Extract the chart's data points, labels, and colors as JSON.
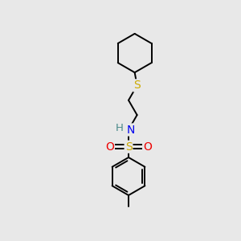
{
  "background_color": "#e8e8e8",
  "atom_colors": {
    "C": "#000000",
    "H": "#4a8a8a",
    "N": "#0000ee",
    "O": "#ee0000",
    "S_sulfide": "#ccaa00",
    "S_sulfonyl": "#ccaa00"
  },
  "bond_color": "#000000",
  "bond_width": 1.4,
  "fig_width": 3.0,
  "fig_height": 3.0,
  "font_size": 9.5
}
